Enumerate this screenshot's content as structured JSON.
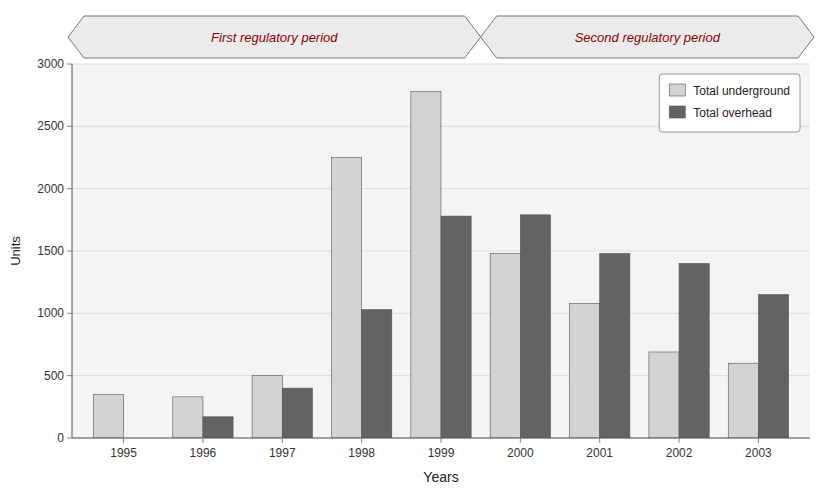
{
  "chart_data": {
    "type": "bar",
    "xlabel": "Years",
    "ylabel": "Units",
    "categories": [
      "1995",
      "1996",
      "1997",
      "1998",
      "1999",
      "2000",
      "2001",
      "2002",
      "2003"
    ],
    "series": [
      {
        "name": "Total underground",
        "color": "#d3d3d3",
        "values": [
          350,
          330,
          500,
          2250,
          2780,
          1480,
          1080,
          690,
          600
        ]
      },
      {
        "name": "Total overhead",
        "color": "#636363",
        "values": [
          0,
          170,
          400,
          1030,
          1780,
          1790,
          1480,
          1400,
          1150
        ]
      }
    ],
    "ylim": [
      0,
      3000
    ],
    "yticks": [
      0,
      500,
      1000,
      1500,
      2000,
      2500,
      3000
    ],
    "grid": true,
    "legend": "upper right",
    "annotations": [
      {
        "text": "First regulatory period",
        "start": "1995",
        "end": "1999"
      },
      {
        "text": "Second regulatory period",
        "start": "2000",
        "end": "2003"
      }
    ]
  }
}
